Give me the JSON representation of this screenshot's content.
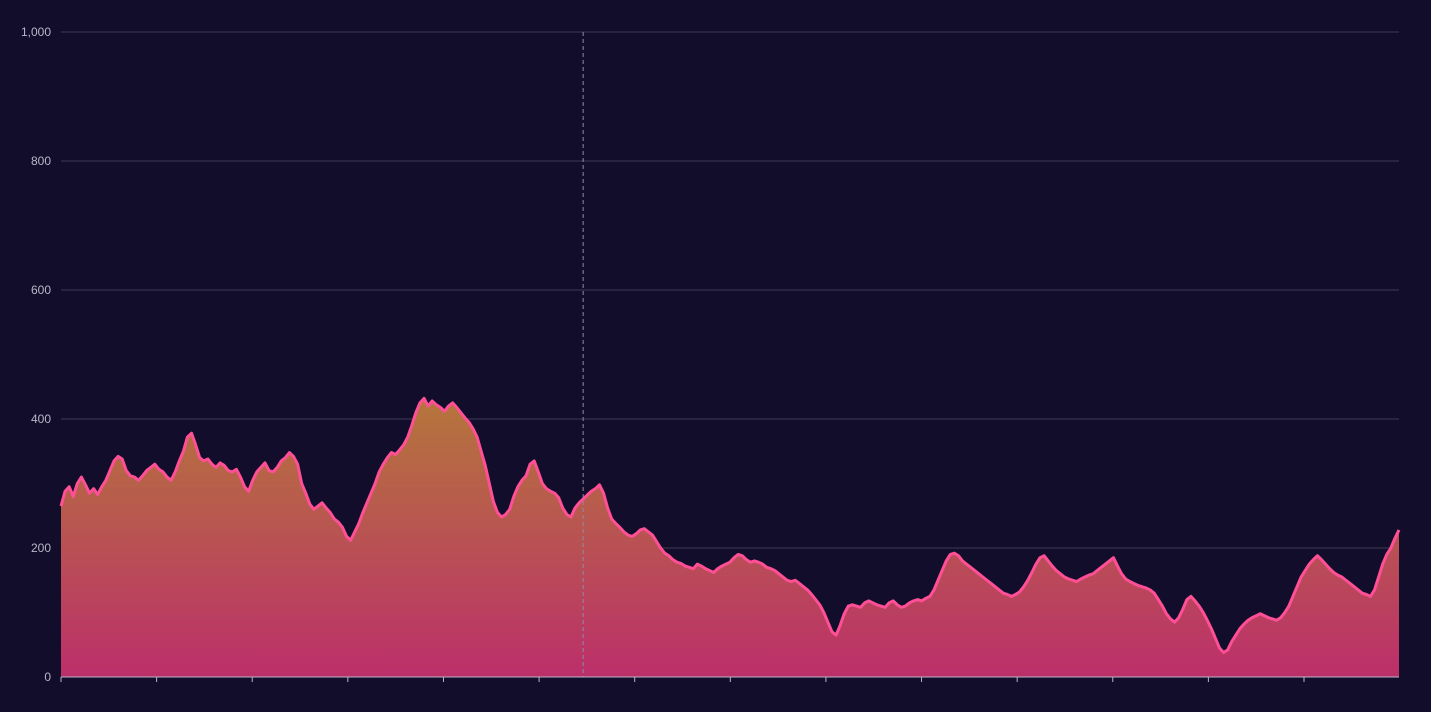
{
  "chart_data": {
    "type": "area",
    "title": "",
    "xlabel": "",
    "ylabel": "",
    "ylim": [
      0,
      1000
    ],
    "y_ticks": [
      0,
      200,
      400,
      600,
      800,
      1000
    ],
    "y_tick_labels": [
      "0",
      "200",
      "400",
      "600",
      "800",
      "1,000"
    ],
    "x_tick_count": 14,
    "grid": "horizontal",
    "legend": "none",
    "crosshair_x_index": 128,
    "colors": {
      "background": "#120d2b",
      "line": "#ff4f96",
      "area_top": "#b5763b",
      "area_bottom": "#bc2f6a",
      "grid": "#3f3a56",
      "crosshair": "#8f8aa8",
      "axis": "#b9b6c9"
    },
    "series": [
      {
        "values": [
          265,
          288,
          295,
          280,
          300,
          310,
          298,
          285,
          292,
          283,
          295,
          305,
          320,
          335,
          342,
          338,
          320,
          312,
          310,
          305,
          312,
          320,
          325,
          330,
          322,
          318,
          310,
          305,
          318,
          335,
          350,
          372,
          378,
          360,
          340,
          335,
          338,
          330,
          325,
          332,
          328,
          320,
          318,
          322,
          310,
          295,
          288,
          305,
          318,
          325,
          332,
          320,
          318,
          325,
          335,
          340,
          348,
          342,
          330,
          300,
          285,
          268,
          260,
          265,
          270,
          262,
          255,
          245,
          240,
          232,
          218,
          212,
          225,
          238,
          255,
          270,
          285,
          300,
          318,
          330,
          340,
          348,
          345,
          352,
          360,
          372,
          390,
          410,
          425,
          432,
          420,
          428,
          422,
          418,
          412,
          420,
          425,
          418,
          410,
          402,
          395,
          385,
          372,
          350,
          328,
          300,
          272,
          255,
          248,
          252,
          260,
          280,
          295,
          305,
          312,
          330,
          335,
          318,
          300,
          292,
          288,
          285,
          278,
          262,
          252,
          248,
          262,
          270,
          276,
          282,
          288,
          292,
          298,
          285,
          262,
          245,
          238,
          232,
          225,
          220,
          218,
          222,
          228,
          230,
          225,
          220,
          210,
          200,
          192,
          188,
          182,
          178,
          176,
          172,
          170,
          168,
          175,
          172,
          168,
          165,
          162,
          168,
          172,
          175,
          178,
          185,
          190,
          188,
          182,
          178,
          180,
          178,
          175,
          170,
          168,
          165,
          160,
          155,
          150,
          148,
          150,
          145,
          140,
          135,
          128,
          120,
          112,
          100,
          85,
          70,
          65,
          80,
          98,
          110,
          112,
          110,
          108,
          115,
          118,
          115,
          112,
          110,
          108,
          115,
          118,
          112,
          108,
          110,
          115,
          118,
          120,
          118,
          122,
          125,
          135,
          150,
          165,
          180,
          190,
          192,
          188,
          180,
          175,
          170,
          165,
          160,
          155,
          150,
          145,
          140,
          135,
          130,
          128,
          125,
          128,
          132,
          140,
          150,
          162,
          175,
          185,
          188,
          180,
          172,
          165,
          160,
          155,
          152,
          150,
          148,
          152,
          155,
          158,
          160,
          165,
          170,
          175,
          180,
          185,
          172,
          160,
          152,
          148,
          145,
          142,
          140,
          138,
          135,
          130,
          120,
          110,
          98,
          90,
          85,
          92,
          105,
          120,
          125,
          118,
          110,
          100,
          88,
          75,
          60,
          45,
          38,
          42,
          55,
          65,
          75,
          82,
          88,
          92,
          95,
          98,
          95,
          92,
          90,
          88,
          92,
          100,
          110,
          125,
          140,
          155,
          165,
          175,
          182,
          188,
          182,
          175,
          168,
          162,
          158,
          155,
          150,
          145,
          140,
          135,
          130,
          128,
          125,
          135,
          155,
          175,
          190,
          200,
          215,
          228
        ]
      }
    ]
  }
}
